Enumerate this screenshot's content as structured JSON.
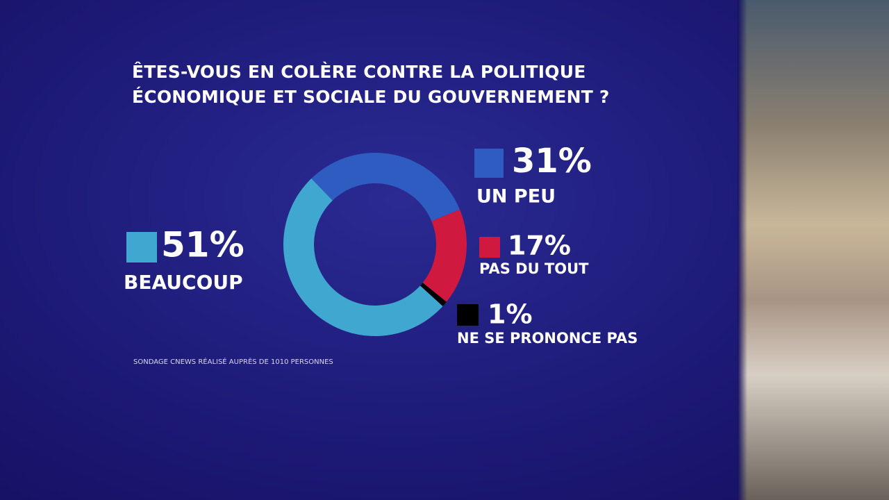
{
  "chart_data": {
    "type": "donut",
    "title": "ÊTES-VOUS EN COLÈRE CONTRE LA POLITIQUE ÉCONOMIQUE ET SOCIALE DU GOUVERNEMENT ?",
    "categories": [
      "BEAUCOUP",
      "UN PEU",
      "PAS DU TOUT",
      "NE SE PRONONCE PAS"
    ],
    "values": [
      51,
      31,
      17,
      1
    ],
    "value_labels": [
      "51%",
      "31%",
      "17%",
      "1%"
    ],
    "colors": [
      "#40a8d0",
      "#2f5cc0",
      "#d0193f",
      "#000000"
    ],
    "source": "SONDAGE CNEWS RÉALISÉ AUPRÈS DE 1010 PERSONNES"
  }
}
